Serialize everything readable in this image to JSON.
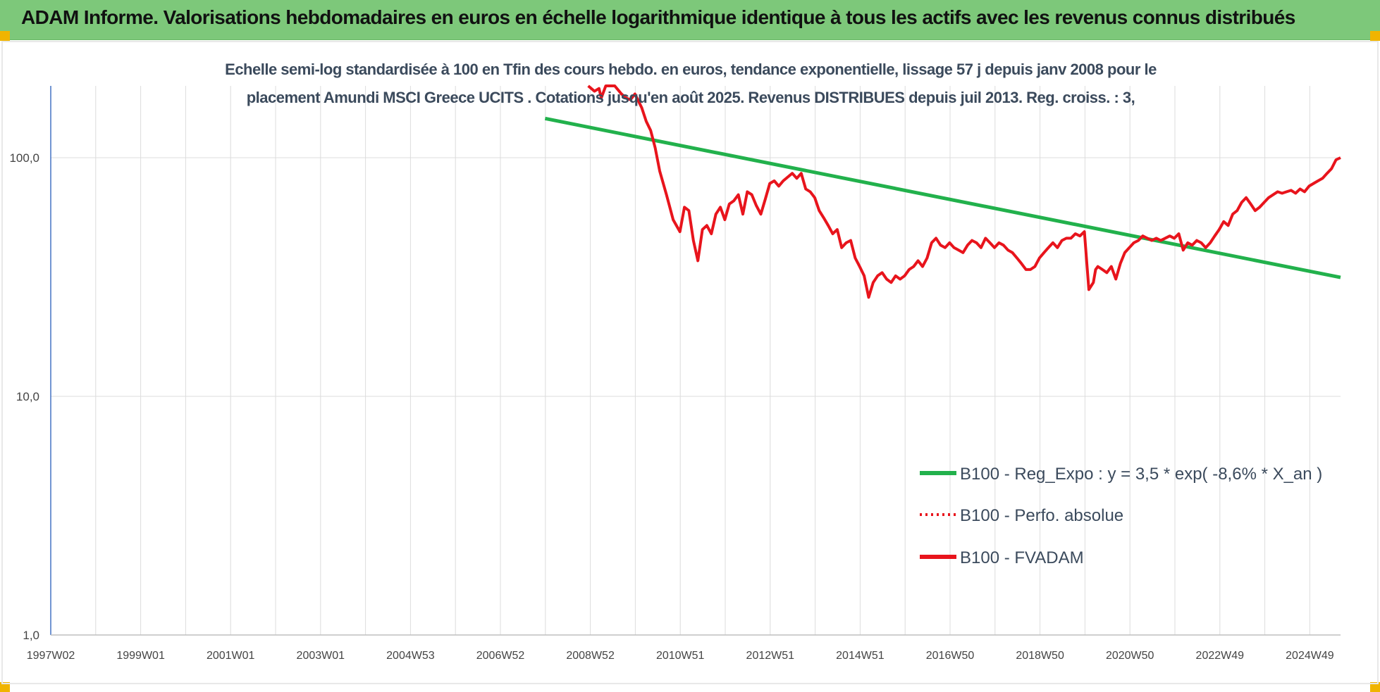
{
  "header": {
    "title": "ADAM Informe. Valorisations hebdomadaires en euros en échelle logarithmique identique à tous les actifs avec les revenus connus distribués"
  },
  "chart_data": {
    "type": "line",
    "title": "",
    "subtitle_lines": [
      "Echelle semi-log standardisée à 100 en Tfin des cours hebdo. en euros, tendance exponentielle, lissage 57 j depuis janv 2008 pour le",
      "placement Amundi MSCI Greece UCITS . Cotations jusqu'en août 2025. Revenus DISTRIBUES depuis juil 2013. Reg. croiss. : 3,"
    ],
    "y_scale": "log",
    "ylim": [
      1,
      200
    ],
    "y_ticks": [
      1,
      10,
      100
    ],
    "y_tick_labels": [
      "1,0",
      "10,0",
      "100,0"
    ],
    "x_ticks": [
      "1997W02",
      "1999W01",
      "2001W01",
      "2003W01",
      "2004W53",
      "2006W52",
      "2008W52",
      "2010W51",
      "2012W51",
      "2014W51",
      "2016W50",
      "2018W50",
      "2020W50",
      "2022W49",
      "2024W49"
    ],
    "xlim": [
      1997.0,
      2025.7
    ],
    "grid": true,
    "legend_position": "right-center",
    "series": [
      {
        "name": "B100 - Reg_Expo : y = 3,5 * exp( -8,6% *  X_an )",
        "color": "#22b14c",
        "style": "solid",
        "x": [
          2008.0,
          2025.7
        ],
        "y": [
          146,
          31.5
        ]
      },
      {
        "name": "B100 - Perfo. absolue",
        "color": "#e8141c",
        "style": "dotted",
        "x": [],
        "y": []
      },
      {
        "name": "B100 - FVADAM",
        "color": "#e8141c",
        "style": "solid",
        "x": [
          2008.96,
          2009.1,
          2009.2,
          2009.25,
          2009.35,
          2009.55,
          2009.7,
          2009.8,
          2009.9,
          2010.0,
          2010.15,
          2010.25,
          2010.35,
          2010.45,
          2010.55,
          2010.7,
          2010.85,
          2011.0,
          2011.1,
          2011.2,
          2011.3,
          2011.4,
          2011.5,
          2011.6,
          2011.7,
          2011.8,
          2011.9,
          2012.0,
          2012.1,
          2012.2,
          2012.3,
          2012.4,
          2012.5,
          2012.6,
          2012.7,
          2012.8,
          2012.9,
          2013.0,
          2013.1,
          2013.2,
          2013.3,
          2013.4,
          2013.5,
          2013.6,
          2013.7,
          2013.8,
          2013.9,
          2014.0,
          2014.1,
          2014.2,
          2014.3,
          2014.4,
          2014.5,
          2014.6,
          2014.7,
          2014.8,
          2014.9,
          2015.0,
          2015.1,
          2015.2,
          2015.3,
          2015.4,
          2015.5,
          2015.6,
          2015.7,
          2015.8,
          2015.9,
          2016.0,
          2016.1,
          2016.2,
          2016.3,
          2016.4,
          2016.5,
          2016.6,
          2016.7,
          2016.8,
          2016.9,
          2017.0,
          2017.1,
          2017.2,
          2017.3,
          2017.4,
          2017.5,
          2017.6,
          2017.7,
          2017.8,
          2017.9,
          2018.0,
          2018.1,
          2018.2,
          2018.3,
          2018.4,
          2018.5,
          2018.6,
          2018.7,
          2018.8,
          2018.9,
          2019.0,
          2019.1,
          2019.2,
          2019.3,
          2019.4,
          2019.5,
          2019.6,
          2019.7,
          2019.8,
          2019.9,
          2020.0,
          2020.1,
          2020.2,
          2020.25,
          2020.3,
          2020.4,
          2020.5,
          2020.6,
          2020.7,
          2020.8,
          2020.9,
          2021.0,
          2021.1,
          2021.2,
          2021.3,
          2021.4,
          2021.5,
          2021.6,
          2021.7,
          2021.8,
          2021.9,
          2022.0,
          2022.1,
          2022.2,
          2022.3,
          2022.4,
          2022.5,
          2022.6,
          2022.7,
          2022.8,
          2022.9,
          2023.0,
          2023.1,
          2023.2,
          2023.3,
          2023.4,
          2023.5,
          2023.6,
          2023.7,
          2023.8,
          2023.9,
          2024.0,
          2024.1,
          2024.2,
          2024.3,
          2024.4,
          2024.5,
          2024.6,
          2024.7,
          2024.8,
          2024.9,
          2025.0,
          2025.1,
          2025.2,
          2025.3,
          2025.4,
          2025.5,
          2025.6,
          2025.7
        ],
        "y": [
          200,
          190,
          195,
          178,
          200,
          200,
          185,
          178,
          175,
          185,
          162,
          142,
          130,
          110,
          88,
          70,
          55,
          49,
          62,
          60,
          45,
          37,
          50,
          52,
          48,
          58,
          62,
          55,
          64,
          66,
          70,
          58,
          72,
          70,
          63,
          58,
          67,
          78,
          80,
          76,
          80,
          83,
          86,
          82,
          86,
          74,
          72,
          68,
          60,
          56,
          52,
          48,
          50,
          42,
          44,
          45,
          38,
          35,
          32,
          26,
          30,
          32,
          33,
          31,
          30,
          32,
          31,
          32,
          34,
          35,
          37,
          35,
          38,
          44,
          46,
          43,
          42,
          44,
          42,
          41,
          40,
          43,
          45,
          44,
          42,
          46,
          44,
          42,
          44,
          43,
          41,
          40,
          38,
          36,
          34,
          34,
          35,
          38,
          40,
          42,
          44,
          42,
          45,
          46,
          46,
          48,
          47,
          49,
          28,
          30,
          34,
          35,
          34,
          33,
          35,
          31,
          36,
          40,
          42,
          44,
          45,
          47,
          46,
          45,
          46,
          45,
          46,
          47,
          46,
          48,
          41,
          44,
          43,
          45,
          44,
          42,
          44,
          47,
          50,
          54,
          52,
          58,
          60,
          65,
          68,
          64,
          60,
          62,
          65,
          68,
          70,
          72,
          71,
          72,
          73,
          71,
          74,
          72,
          76,
          78,
          80,
          82,
          86,
          90,
          98,
          100
        ]
      }
    ]
  }
}
